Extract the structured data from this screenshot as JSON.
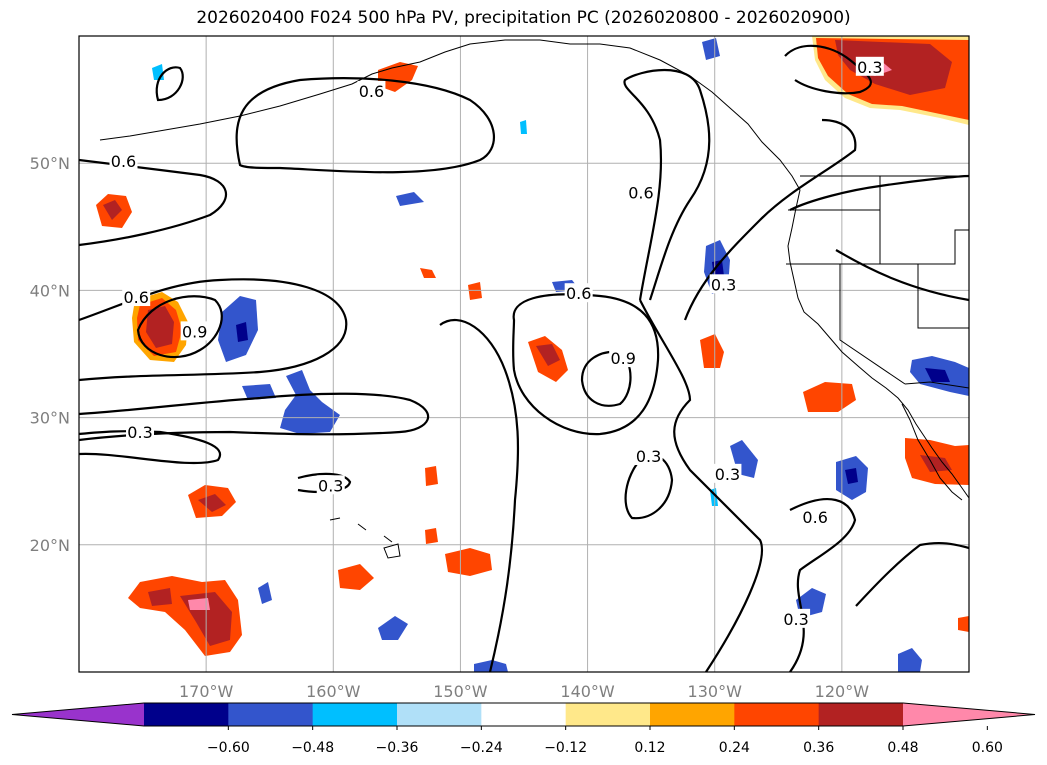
{
  "title": "2026020400 F024 500 hPa PV, precipitation PC (2026020800 - 2026020900)",
  "map": {
    "lon_range": [
      -180,
      -110
    ],
    "lat_range": [
      10,
      60
    ],
    "lon_ticks": [
      {
        "value": -170,
        "label": "170°W"
      },
      {
        "value": -160,
        "label": "160°W"
      },
      {
        "value": -150,
        "label": "150°W"
      },
      {
        "value": -140,
        "label": "140°W"
      },
      {
        "value": -130,
        "label": "130°W"
      },
      {
        "value": -120,
        "label": "120°W"
      }
    ],
    "lat_ticks": [
      {
        "value": 20,
        "label": "20°N"
      },
      {
        "value": 30,
        "label": "30°N"
      },
      {
        "value": 40,
        "label": "40°N"
      },
      {
        "value": 50,
        "label": "50°N"
      }
    ],
    "grid": true,
    "coastlines": true,
    "country_borders": true,
    "state_borders": true
  },
  "colorbar": {
    "extend": "both",
    "colors": [
      "#9933cc",
      "#00008b",
      "#3355cc",
      "#00bfff",
      "#b0e0f8",
      "#ffffff",
      "#ffe88a",
      "#ffa500",
      "#ff4500",
      "#b22222",
      "#ff88aa"
    ],
    "tick_labels": [
      "−0.60",
      "−0.48",
      "−0.36",
      "−0.24",
      "−0.12",
      "0.12",
      "0.24",
      "0.36",
      "0.48",
      "0.60"
    ]
  },
  "pv_contour_labels": [
    {
      "text": "0.6",
      "lon": -176.5,
      "lat": 50.1
    },
    {
      "text": "0.6",
      "lon": -157.0,
      "lat": 55.6
    },
    {
      "text": "0.6",
      "lon": -175.5,
      "lat": 39.4
    },
    {
      "text": "0.9",
      "lon": -170.9,
      "lat": 36.7
    },
    {
      "text": "0.3",
      "lon": -175.2,
      "lat": 28.8
    },
    {
      "text": "0.3",
      "lon": -160.2,
      "lat": 24.6
    },
    {
      "text": "0.6",
      "lon": -140.7,
      "lat": 39.7
    },
    {
      "text": "0.9",
      "lon": -137.2,
      "lat": 34.6
    },
    {
      "text": "0.3",
      "lon": -135.2,
      "lat": 26.9
    },
    {
      "text": "0.6",
      "lon": -135.8,
      "lat": 47.6
    },
    {
      "text": "0.3",
      "lon": -129.3,
      "lat": 40.4
    },
    {
      "text": "0.3",
      "lon": -129.0,
      "lat": 25.5
    },
    {
      "text": "0.3",
      "lon": -117.8,
      "lat": 57.5
    },
    {
      "text": "0.6",
      "lon": -122.1,
      "lat": 22.1
    },
    {
      "text": "0.3",
      "lon": -123.6,
      "lat": 14.1
    }
  ]
}
